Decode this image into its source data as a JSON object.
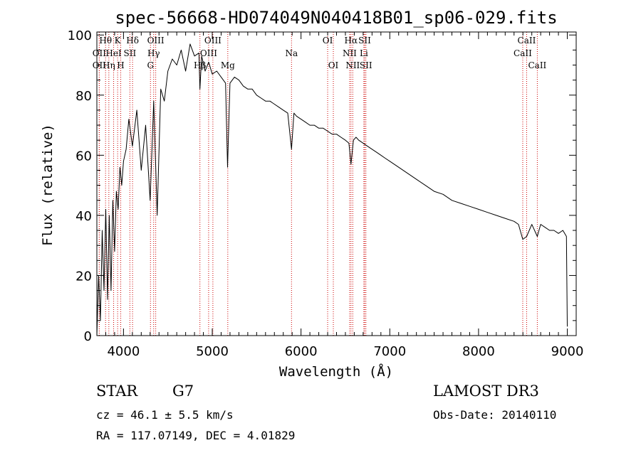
{
  "chart_data": {
    "type": "line",
    "title": "spec-56668-HD074049N040418B01_sp06-029.fits",
    "xlabel": "Wavelength (Å)",
    "ylabel": "Flux (relative)",
    "xlim": [
      3700,
      9100
    ],
    "ylim": [
      0,
      101
    ],
    "xticks": [
      4000,
      5000,
      6000,
      7000,
      8000,
      9000
    ],
    "yticks": [
      0,
      20,
      40,
      60,
      80,
      100
    ],
    "x_tick_labels": [
      "4000",
      "5000",
      "6000",
      "7000",
      "8000",
      "9000"
    ],
    "y_tick_labels": [
      "0",
      "20",
      "40",
      "60",
      "80",
      "100"
    ],
    "grid": false,
    "series": [
      {
        "name": "spectrum",
        "x": [
          3700,
          3720,
          3740,
          3760,
          3780,
          3800,
          3820,
          3840,
          3860,
          3880,
          3900,
          3920,
          3940,
          3960,
          3980,
          4000,
          4030,
          4060,
          4100,
          4150,
          4200,
          4250,
          4300,
          4340,
          4380,
          4420,
          4460,
          4500,
          4550,
          4600,
          4650,
          4700,
          4750,
          4800,
          4850,
          4861,
          4880,
          4920,
          4960,
          5000,
          5050,
          5100,
          5150,
          5172,
          5200,
          5250,
          5300,
          5350,
          5400,
          5450,
          5500,
          5550,
          5600,
          5650,
          5700,
          5750,
          5800,
          5850,
          5893,
          5920,
          5950,
          6000,
          6050,
          6100,
          6150,
          6200,
          6250,
          6300,
          6350,
          6400,
          6450,
          6500,
          6540,
          6563,
          6590,
          6620,
          6650,
          6700,
          6750,
          6800,
          6850,
          6900,
          6950,
          7000,
          7100,
          7200,
          7300,
          7400,
          7500,
          7600,
          7700,
          7800,
          7900,
          8000,
          8100,
          8200,
          8300,
          8400,
          8450,
          8498,
          8542,
          8600,
          8662,
          8700,
          8750,
          8800,
          8850,
          8900,
          8950,
          8990,
          9000
        ],
        "values": [
          0,
          20,
          5,
          35,
          15,
          42,
          12,
          40,
          15,
          45,
          28,
          48,
          42,
          56,
          50,
          58,
          62,
          72,
          63,
          75,
          55,
          70,
          45,
          78,
          40,
          82,
          78,
          88,
          92,
          90,
          95,
          88,
          97,
          93,
          94,
          82,
          93,
          88,
          91,
          87,
          88,
          86,
          84,
          56,
          84,
          86,
          85,
          83,
          82,
          82,
          80,
          79,
          78,
          78,
          77,
          76,
          75,
          74,
          62,
          74,
          73,
          72,
          71,
          70,
          70,
          69,
          69,
          68,
          67,
          67,
          66,
          65,
          64,
          57,
          65,
          66,
          65,
          64,
          63,
          62,
          61,
          60,
          59,
          58,
          56,
          54,
          52,
          50,
          48,
          47,
          45,
          44,
          43,
          42,
          41,
          40,
          39,
          38,
          37,
          32,
          33,
          37,
          33,
          37,
          36,
          35,
          35,
          34,
          35,
          33,
          3
        ]
      }
    ],
    "spectral_lines": [
      {
        "label": "Hθ",
        "x": 3798,
        "row": 1
      },
      {
        "label": "OII",
        "x": 3727,
        "row": 2
      },
      {
        "label": "OII",
        "x": 3727,
        "row": 3
      },
      {
        "label": "K",
        "x": 3934,
        "row": 1
      },
      {
        "label": "HeI",
        "x": 3889,
        "row": 2
      },
      {
        "label": "Hη",
        "x": 3835,
        "row": 3
      },
      {
        "label": "Hδ",
        "x": 4102,
        "row": 1
      },
      {
        "label": "SII",
        "x": 4072,
        "row": 2
      },
      {
        "label": "H",
        "x": 3969,
        "row": 3
      },
      {
        "label": "OIII",
        "x": 4363,
        "row": 1
      },
      {
        "label": "Hγ",
        "x": 4340,
        "row": 2
      },
      {
        "label": "G",
        "x": 4304,
        "row": 3
      },
      {
        "label": "OIII",
        "x": 5007,
        "row": 1
      },
      {
        "label": "OIII",
        "x": 4959,
        "row": 2
      },
      {
        "label": "Hβ",
        "x": 4861,
        "row": 3
      },
      {
        "label": "Mg",
        "x": 5175,
        "row": 3
      },
      {
        "label": "Na",
        "x": 5893,
        "row": 2
      },
      {
        "label": "OI",
        "x": 6300,
        "row": 1
      },
      {
        "label": "OI",
        "x": 6364,
        "row": 3
      },
      {
        "label": "Hα",
        "x": 6563,
        "row": 1
      },
      {
        "label": "NII",
        "x": 6548,
        "row": 2
      },
      {
        "label": "NII",
        "x": 6583,
        "row": 3
      },
      {
        "label": "SII",
        "x": 6717,
        "row": 1
      },
      {
        "label": "Li",
        "x": 6708,
        "row": 2
      },
      {
        "label": "SII",
        "x": 6731,
        "row": 3
      },
      {
        "label": "CaII",
        "x": 8542,
        "row": 1
      },
      {
        "label": "CaII",
        "x": 8498,
        "row": 2
      },
      {
        "label": "CaII",
        "x": 8662,
        "row": 3
      }
    ]
  },
  "info": {
    "object_type": "STAR",
    "subclass": "G7",
    "survey": "LAMOST DR3",
    "redshift": "cz = 46.1 ± 5.5 km/s",
    "obs_date": "Obs-Date: 20140110",
    "coords": "RA = 117.07149, DEC =   4.01829"
  },
  "colors": {
    "line": "#000000",
    "marker_lines": "#cc0000",
    "background": "#ffffff"
  }
}
